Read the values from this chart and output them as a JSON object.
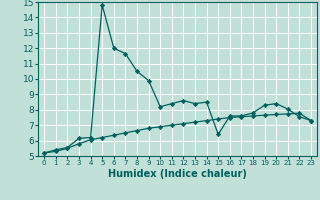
{
  "title": "",
  "xlabel": "Humidex (Indice chaleur)",
  "ylabel": "",
  "bg_color": "#c0e0d8",
  "grid_color": "#ffffff",
  "line_color": "#006060",
  "xlim": [
    -0.5,
    23.5
  ],
  "ylim": [
    5,
    15
  ],
  "xticks": [
    0,
    1,
    2,
    3,
    4,
    5,
    6,
    7,
    8,
    9,
    10,
    11,
    12,
    13,
    14,
    15,
    16,
    17,
    18,
    19,
    20,
    21,
    22,
    23
  ],
  "yticks": [
    5,
    6,
    7,
    8,
    9,
    10,
    11,
    12,
    13,
    14,
    15
  ],
  "series1_x": [
    0,
    1,
    2,
    3,
    4,
    5,
    6,
    7,
    8,
    9,
    10,
    11,
    12,
    13,
    14,
    15,
    16,
    17,
    18,
    19,
    20,
    21,
    22,
    23
  ],
  "series1_y": [
    5.2,
    5.4,
    5.55,
    6.15,
    6.2,
    14.8,
    12.0,
    11.65,
    10.5,
    9.9,
    8.2,
    8.4,
    8.6,
    8.4,
    8.5,
    6.4,
    7.6,
    7.6,
    7.8,
    8.3,
    8.4,
    8.05,
    7.55,
    7.3
  ],
  "series2_x": [
    0,
    1,
    2,
    3,
    4,
    5,
    6,
    7,
    8,
    9,
    10,
    11,
    12,
    13,
    14,
    15,
    16,
    17,
    18,
    19,
    20,
    21,
    22,
    23
  ],
  "series2_y": [
    5.2,
    5.3,
    5.5,
    5.8,
    6.05,
    6.2,
    6.35,
    6.5,
    6.65,
    6.8,
    6.9,
    7.0,
    7.1,
    7.2,
    7.3,
    7.4,
    7.5,
    7.55,
    7.6,
    7.65,
    7.7,
    7.73,
    7.78,
    7.3
  ],
  "marker": "D",
  "marker_size": 2.2,
  "line_width": 0.9,
  "xlabel_fontsize": 7,
  "xtick_fontsize": 5.0,
  "ytick_fontsize": 6.5
}
